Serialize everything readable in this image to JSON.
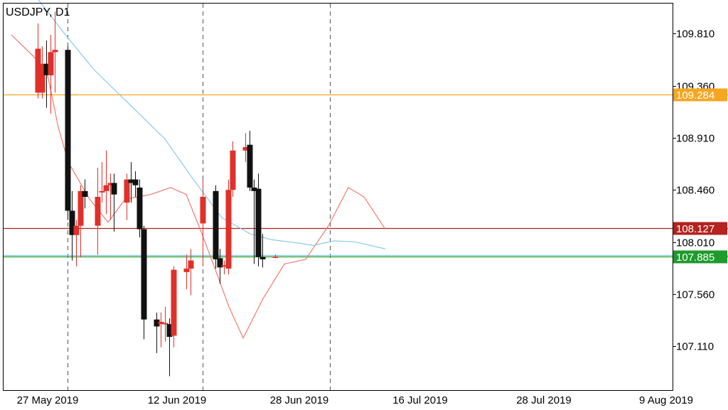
{
  "chart_data": {
    "type": "candlestick",
    "title": "USDJPY, D1",
    "ylim": [
      106.73,
      110.07
    ],
    "yticks": [
      "109.810",
      "109.360",
      "108.910",
      "108.460",
      "108.010",
      "107.560",
      "107.110"
    ],
    "xticks": [
      "27 May 2019",
      "12 Jun 2019",
      "28 Jun 2019",
      "16 Jul 2019",
      "28 Jul 2019",
      "9 Aug 2019"
    ],
    "grid": false,
    "colors": {
      "bull": "#e0302a",
      "bear": "#111111",
      "fast_ma": "#f07060",
      "slow_ma": "#7fc8e8"
    },
    "candles": [
      {
        "date": "2019-05-20",
        "open": 109.3,
        "high": 109.9,
        "low": 109.25,
        "close": 109.68
      },
      {
        "date": "2019-05-21",
        "open": 109.3,
        "high": 109.7,
        "low": 109.25,
        "close": 109.55
      },
      {
        "date": "2019-05-22",
        "open": 109.55,
        "high": 109.75,
        "low": 109.17,
        "close": 109.45
      },
      {
        "date": "2019-05-23",
        "open": 109.45,
        "high": 109.8,
        "low": 109.12,
        "close": 109.65
      },
      {
        "date": "2019-05-24",
        "open": 109.65,
        "high": 110.0,
        "low": 109.3,
        "close": 109.67
      },
      {
        "date": "2019-05-27",
        "open": 109.67,
        "high": 109.7,
        "low": 108.2,
        "close": 108.28
      },
      {
        "date": "2019-05-28",
        "open": 108.28,
        "high": 108.45,
        "low": 107.85,
        "close": 108.07
      },
      {
        "date": "2019-05-29",
        "open": 108.07,
        "high": 108.2,
        "low": 107.8,
        "close": 108.15
      },
      {
        "date": "2019-05-30",
        "open": 108.15,
        "high": 108.5,
        "low": 107.88,
        "close": 108.45
      },
      {
        "date": "2019-05-31",
        "open": 108.45,
        "high": 108.55,
        "low": 108.3,
        "close": 108.4
      },
      {
        "date": "2019-06-03",
        "open": 108.15,
        "high": 108.65,
        "low": 107.9,
        "close": 108.4
      },
      {
        "date": "2019-06-04",
        "open": 108.45,
        "high": 108.7,
        "low": 108.35,
        "close": 108.45
      },
      {
        "date": "2019-06-05",
        "open": 108.45,
        "high": 108.8,
        "low": 108.25,
        "close": 108.5
      },
      {
        "date": "2019-06-06",
        "open": 108.5,
        "high": 108.6,
        "low": 108.2,
        "close": 108.52
      },
      {
        "date": "2019-06-07",
        "open": 108.52,
        "high": 108.6,
        "low": 108.1,
        "close": 108.42
      },
      {
        "date": "2019-06-10",
        "open": 108.35,
        "high": 108.6,
        "low": 108.2,
        "close": 108.55
      },
      {
        "date": "2019-06-11",
        "open": 108.55,
        "high": 108.7,
        "low": 108.35,
        "close": 108.52
      },
      {
        "date": "2019-06-12",
        "open": 108.55,
        "high": 108.62,
        "low": 108.4,
        "close": 108.5
      },
      {
        "date": "2019-06-13",
        "open": 108.48,
        "high": 108.55,
        "low": 108.05,
        "close": 108.12
      },
      {
        "date": "2019-06-14",
        "open": 108.12,
        "high": 108.15,
        "low": 107.17,
        "close": 107.34
      },
      {
        "date": "2019-06-17",
        "open": 107.34,
        "high": 107.4,
        "low": 107.05,
        "close": 107.28
      },
      {
        "date": "2019-06-18",
        "open": 107.3,
        "high": 107.4,
        "low": 107.1,
        "close": 107.32
      },
      {
        "date": "2019-06-19",
        "open": 107.3,
        "high": 107.45,
        "low": 107.15,
        "close": 107.31
      },
      {
        "date": "2019-06-20",
        "open": 107.3,
        "high": 107.35,
        "low": 106.85,
        "close": 107.19
      },
      {
        "date": "2019-06-21",
        "open": 107.2,
        "high": 107.8,
        "low": 107.1,
        "close": 107.77
      },
      {
        "date": "2019-06-24",
        "open": 107.75,
        "high": 107.9,
        "low": 107.6,
        "close": 107.78
      },
      {
        "date": "2019-06-25",
        "open": 107.78,
        "high": 107.95,
        "low": 107.55,
        "close": 107.85
      },
      {
        "date": "2019-06-28",
        "open": 108.17,
        "high": 108.55,
        "low": 107.8,
        "close": 108.4
      },
      {
        "date": "2019-07-01",
        "open": 108.45,
        "high": 108.5,
        "low": 107.78,
        "close": 107.86
      },
      {
        "date": "2019-07-02",
        "open": 107.87,
        "high": 107.95,
        "low": 107.65,
        "close": 107.79
      },
      {
        "date": "2019-07-03",
        "open": 107.8,
        "high": 107.85,
        "low": 107.73,
        "close": 107.81
      },
      {
        "date": "2019-07-04",
        "open": 107.78,
        "high": 108.55,
        "low": 107.73,
        "close": 108.46
      },
      {
        "date": "2019-07-05",
        "open": 108.46,
        "high": 108.88,
        "low": 108.4,
        "close": 108.8
      },
      {
        "date": "2019-07-08",
        "open": 108.8,
        "high": 108.95,
        "low": 108.7,
        "close": 108.83
      },
      {
        "date": "2019-07-09",
        "open": 108.85,
        "high": 108.97,
        "low": 108.45,
        "close": 108.48
      },
      {
        "date": "2019-07-10",
        "open": 108.48,
        "high": 108.55,
        "low": 107.82,
        "close": 108.45
      },
      {
        "date": "2019-07-11",
        "open": 108.47,
        "high": 108.6,
        "low": 107.8,
        "close": 107.88
      },
      {
        "date": "2019-07-12",
        "open": 107.88,
        "high": 108.08,
        "low": 107.79,
        "close": 107.86
      },
      {
        "date": "2019-07-15",
        "open": 107.88,
        "high": 107.9,
        "low": 107.87,
        "close": 107.885
      }
    ],
    "series": [
      {
        "type": "line",
        "color": "#f07060",
        "values": [
          [
            16,
            109.8
          ],
          [
            46,
            109.62
          ],
          [
            66,
            109.48
          ],
          [
            82,
            109.0
          ],
          [
            96,
            108.7
          ],
          [
            126,
            108.38
          ],
          [
            152,
            108.18
          ],
          [
            176,
            108.38
          ],
          [
            212,
            108.42
          ],
          [
            240,
            108.48
          ],
          [
            262,
            108.42
          ],
          [
            284,
            108.08
          ],
          [
            306,
            107.72
          ],
          [
            322,
            107.45
          ],
          [
            342,
            107.18
          ],
          [
            370,
            107.52
          ],
          [
            400,
            107.82
          ],
          [
            430,
            107.86
          ],
          [
            462,
            108.15
          ],
          [
            490,
            108.48
          ],
          [
            512,
            108.4
          ],
          [
            542,
            108.12
          ]
        ]
      },
      {
        "type": "line",
        "color": "#7fc8e8",
        "values": [
          [
            48,
            110.15
          ],
          [
            92,
            109.8
          ],
          [
            132,
            109.5
          ],
          [
            182,
            109.2
          ],
          [
            232,
            108.9
          ],
          [
            272,
            108.55
          ],
          [
            312,
            108.22
          ],
          [
            352,
            108.08
          ],
          [
            382,
            108.03
          ],
          [
            420,
            108.0
          ],
          [
            440,
            107.98
          ],
          [
            470,
            108.02
          ],
          [
            500,
            108.01
          ],
          [
            542,
            107.95
          ]
        ]
      }
    ],
    "hlines": [
      {
        "value": 109.284,
        "color": "#f5a623",
        "label": "109.284"
      },
      {
        "value": 108.127,
        "color": "#b3231f",
        "label": "108.127"
      },
      {
        "value": 107.897,
        "color": "#7fc8e8",
        "label": ""
      },
      {
        "value": 107.885,
        "color": "#1f9a2c",
        "label": "107.885"
      }
    ],
    "vlines": [
      {
        "date": "2019-05-27"
      },
      {
        "date": "2019-06-28"
      },
      {
        "date": "2019-07-28"
      }
    ]
  }
}
